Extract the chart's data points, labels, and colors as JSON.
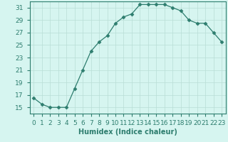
{
  "x": [
    0,
    1,
    2,
    3,
    4,
    5,
    6,
    7,
    8,
    9,
    10,
    11,
    12,
    13,
    14,
    15,
    16,
    17,
    18,
    19,
    20,
    21,
    22,
    23
  ],
  "y": [
    16.5,
    15.5,
    15.0,
    15.0,
    15.0,
    18.0,
    21.0,
    24.0,
    25.5,
    26.5,
    28.5,
    29.5,
    30.0,
    31.5,
    31.5,
    31.5,
    31.5,
    31.0,
    30.5,
    29.0,
    28.5,
    28.5,
    27.0,
    25.5
  ],
  "xlabel": "Humidex (Indice chaleur)",
  "xlim": [
    -0.5,
    23.5
  ],
  "ylim": [
    14,
    32
  ],
  "yticks": [
    15,
    17,
    19,
    21,
    23,
    25,
    27,
    29,
    31
  ],
  "xtick_labels": [
    "0",
    "1",
    "2",
    "3",
    "4",
    "5",
    "6",
    "7",
    "8",
    "9",
    "10",
    "11",
    "12",
    "13",
    "14",
    "15",
    "16",
    "17",
    "18",
    "19",
    "20",
    "21",
    "22",
    "23"
  ],
  "line_color": "#2d7d6e",
  "marker": "D",
  "marker_size": 2.5,
  "bg_color": "#d6f5f0",
  "grid_color": "#b8ddd6",
  "label_fontsize": 7,
  "tick_fontsize": 6.5
}
